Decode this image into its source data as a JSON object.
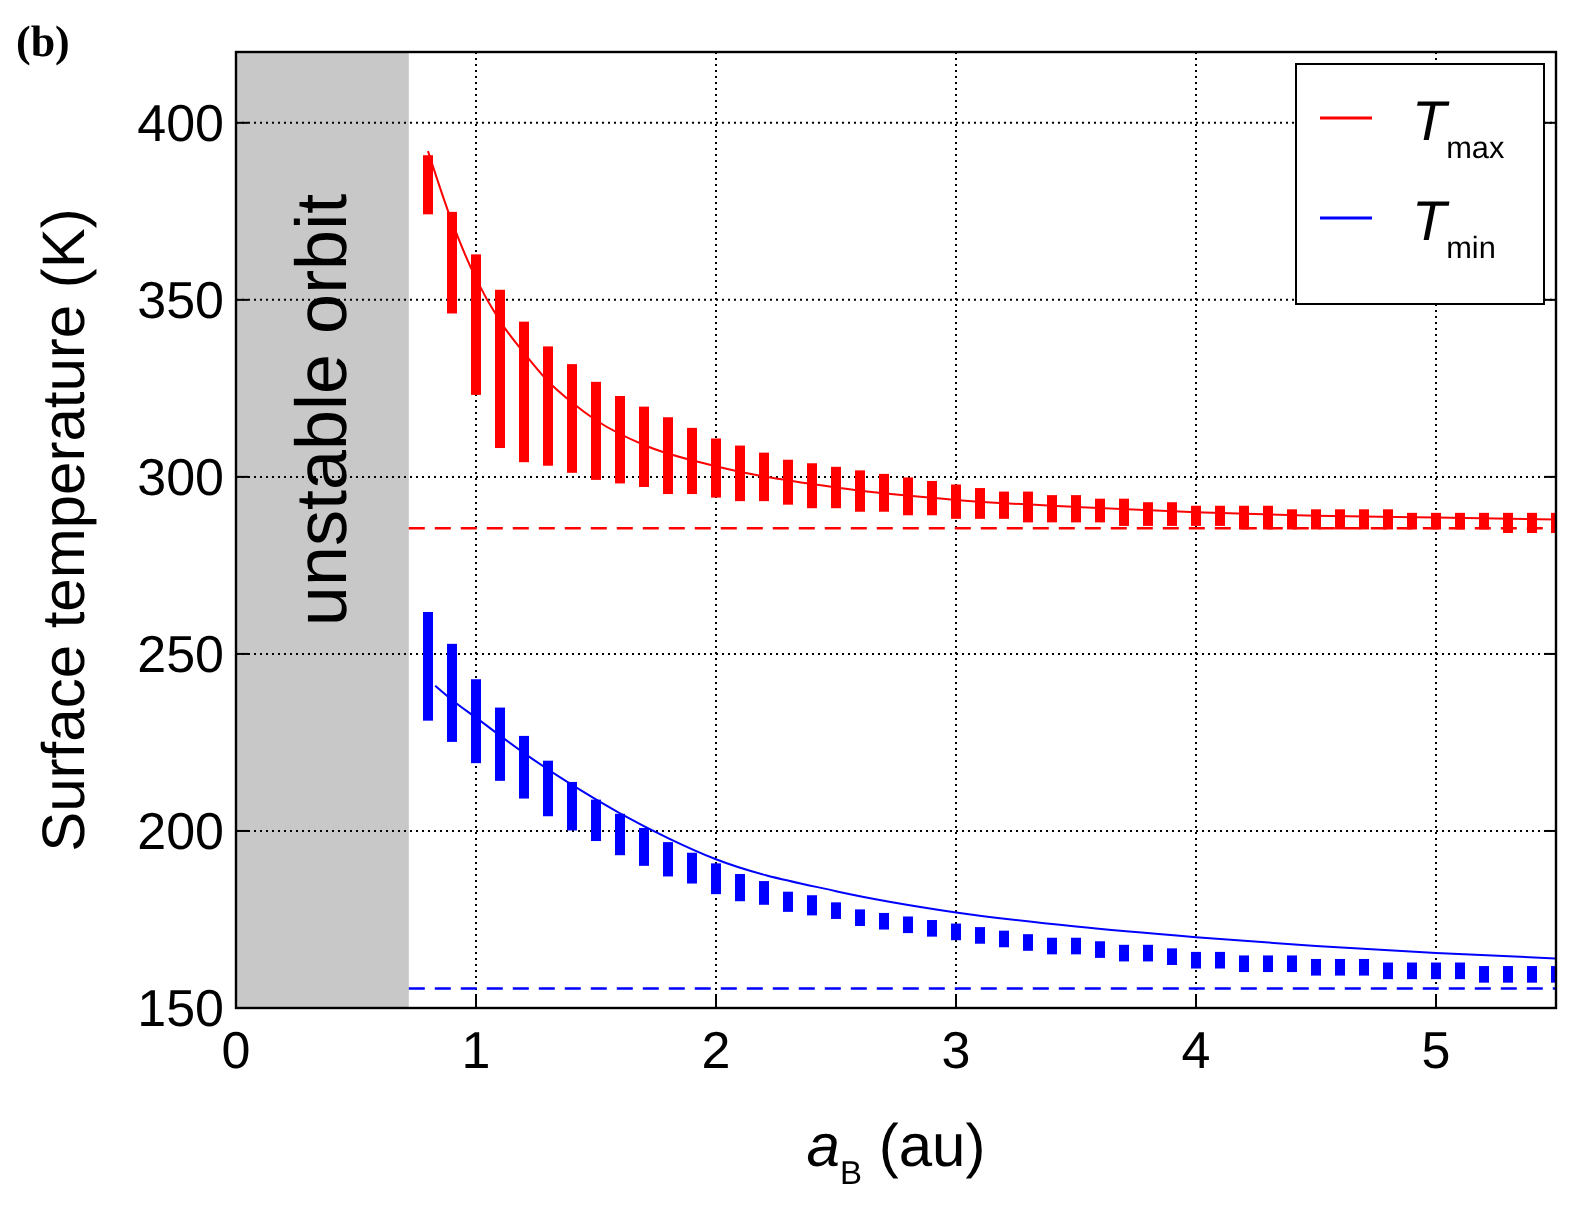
{
  "chart_data": {
    "type": "line",
    "title": "(b)",
    "xlabel": "a$_{B}$ (au)",
    "ylabel": "Surface temperature (K)",
    "xlim": [
      0,
      5.5
    ],
    "xticks": [
      0,
      1,
      2,
      3,
      4,
      5
    ],
    "ylim": [
      150,
      420
    ],
    "yticks": [
      150,
      200,
      250,
      300,
      350,
      400
    ],
    "grid": true,
    "legend": "top right",
    "bands": [
      {
        "axis": "x",
        "from": 0,
        "to": 0.72,
        "label": "unstable orbit",
        "color": "#c8c8c8"
      }
    ],
    "ref_lines": [
      {
        "axis": "y",
        "value": 285.5,
        "color": "#ff0000",
        "line_style": "dashed"
      },
      {
        "axis": "y",
        "value": 155.5,
        "color": "#0000ff",
        "line_style": "dashed"
      }
    ],
    "series": [
      {
        "name": "T$_{max}$",
        "color": "#ff0000",
        "x": [
          0.8,
          0.9,
          1.0,
          1.1,
          1.2,
          1.3,
          1.4,
          1.5,
          1.7,
          2.0,
          2.5,
          3.0,
          3.5,
          4.0,
          4.5,
          5.0,
          5.5
        ],
        "values": [
          392,
          372,
          356,
          344,
          335,
          327,
          321,
          316,
          309,
          303,
          297,
          293.5,
          291.5,
          290,
          289,
          288.5,
          288
        ]
      },
      {
        "type": "bar",
        "color": "#ff0000",
        "x": [
          0.8,
          0.9,
          1.0,
          1.1,
          1.2,
          1.3,
          1.4,
          1.5,
          1.6,
          1.7,
          1.8,
          1.9,
          2.0,
          2.1,
          2.2,
          2.3,
          2.4,
          2.5,
          2.6,
          2.7,
          2.8,
          2.9,
          3.0,
          3.1,
          3.2,
          3.3,
          3.4,
          3.5,
          3.6,
          3.7,
          3.8,
          3.9,
          4.0,
          4.1,
          4.2,
          4.3,
          4.4,
          4.5,
          4.6,
          4.7,
          4.8,
          4.9,
          5.0,
          5.1,
          5.2,
          5.3,
          5.4,
          5.5
        ],
        "base": [
          375,
          347,
          324,
          309,
          305,
          304,
          302,
          300,
          299,
          298,
          296,
          296,
          295,
          294,
          294,
          293,
          292,
          292,
          291,
          291,
          290,
          290,
          289,
          289,
          289,
          288,
          288,
          288,
          288,
          287,
          287,
          287,
          287,
          287,
          286,
          286,
          286,
          286,
          286,
          286,
          286,
          286,
          286,
          286,
          286,
          285,
          285,
          285
        ],
        "values": [
          15,
          27,
          38,
          43,
          38,
          32,
          29,
          26,
          23,
          21,
          20,
          17,
          15,
          14,
          12,
          11,
          11,
          10,
          10,
          9,
          9,
          8,
          8,
          7,
          6,
          7,
          6,
          6,
          5,
          6,
          5,
          5,
          4,
          4,
          5,
          5,
          4,
          4,
          4,
          4,
          4,
          3,
          3,
          3,
          3,
          4,
          4,
          4
        ]
      },
      {
        "name": "T$_{min}$",
        "color": "#0000ff",
        "x": [
          0.83,
          0.9,
          1.0,
          1.2,
          1.4,
          1.6,
          1.8,
          2.0,
          2.5,
          3.0,
          3.5,
          4.0,
          4.5,
          5.0,
          5.5
        ],
        "values": [
          241,
          237,
          232,
          222,
          213,
          205,
          198,
          192,
          183,
          177,
          173,
          170,
          167.5,
          165.5,
          164
        ]
      },
      {
        "type": "bar",
        "color": "#0000ff",
        "x": [
          0.8,
          0.9,
          1.0,
          1.1,
          1.2,
          1.3,
          1.4,
          1.5,
          1.6,
          1.7,
          1.8,
          1.9,
          2.0,
          2.1,
          2.2,
          2.3,
          2.4,
          2.5,
          2.6,
          2.7,
          2.8,
          2.9,
          3.0,
          3.1,
          3.2,
          3.3,
          3.4,
          3.5,
          3.6,
          3.7,
          3.8,
          3.9,
          4.0,
          4.1,
          4.2,
          4.3,
          4.4,
          4.5,
          4.6,
          4.7,
          4.8,
          4.9,
          5.0,
          5.1,
          5.2,
          5.3,
          5.4,
          5.5
        ],
        "base": [
          232,
          226,
          220,
          215,
          210,
          205,
          201,
          198,
          194,
          191,
          188,
          186,
          183,
          181,
          180,
          178,
          177,
          176,
          174,
          173,
          172,
          171,
          170,
          169,
          168,
          167,
          166,
          166,
          165,
          164,
          164,
          163,
          162,
          162,
          161,
          161,
          161,
          160,
          160,
          160,
          159,
          159,
          159,
          159,
          158,
          158,
          158,
          158
        ],
        "values": [
          29,
          26,
          22,
          19,
          16,
          14,
          12,
          10,
          10,
          9,
          8,
          7,
          7,
          6,
          5,
          4,
          4,
          3,
          3,
          3,
          3,
          3,
          3,
          3,
          3,
          3,
          3,
          3,
          3,
          3,
          3,
          3,
          3,
          3,
          3,
          3,
          3,
          3,
          3,
          3,
          3,
          3,
          3,
          3,
          3,
          3,
          3,
          3
        ]
      }
    ]
  }
}
